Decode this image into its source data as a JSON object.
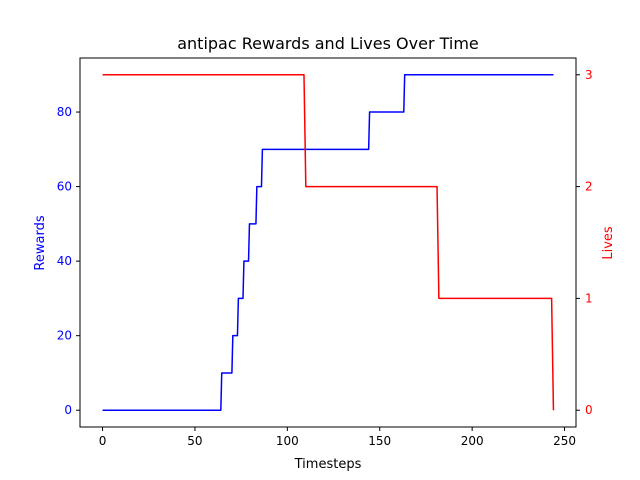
{
  "chart_data": {
    "type": "line",
    "title": "antipac Rewards and Lives Over Time",
    "xlabel": "Timesteps",
    "xlim": [
      -12.2,
      256.2
    ],
    "xticks": [
      0,
      50,
      100,
      150,
      200,
      250
    ],
    "axes": {
      "left": {
        "label": "Rewards",
        "color": "#0000ff",
        "ylim": [
          -4.5,
          94.5
        ],
        "ticks": [
          0,
          20,
          40,
          60,
          80
        ]
      },
      "right": {
        "label": "Lives",
        "color": "#ff0000",
        "ylim": [
          -0.15,
          3.15
        ],
        "ticks": [
          0,
          1,
          2,
          3
        ]
      }
    },
    "series": [
      {
        "axis": "left",
        "color": "#0000ff",
        "x": [
          0,
          64,
          64.5,
          70,
          70.5,
          73,
          73.5,
          76,
          76.5,
          79,
          79.5,
          83,
          83.5,
          86,
          86.5,
          88,
          88.5,
          144,
          144.5,
          163,
          163.5,
          244
        ],
        "y": [
          0,
          0,
          10,
          10,
          20,
          20,
          30,
          30,
          40,
          40,
          50,
          50,
          60,
          60,
          70,
          70,
          70,
          70,
          80,
          80,
          90,
          90
        ]
      },
      {
        "axis": "right",
        "color": "#ff0000",
        "x": [
          0,
          109,
          110,
          181,
          182,
          243,
          244
        ],
        "y": [
          3,
          3,
          2,
          2,
          1,
          1,
          0
        ]
      }
    ],
    "grid": false,
    "legend": "none"
  }
}
